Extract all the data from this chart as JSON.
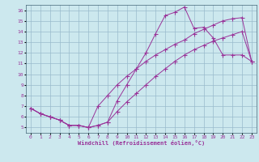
{
  "xlabel": "Windchill (Refroidissement éolien,°C)",
  "bg_color": "#cce8ee",
  "grid_color": "#99bbcc",
  "line_color": "#993399",
  "xlim": [
    -0.5,
    23.5
  ],
  "ylim": [
    4.5,
    16.5
  ],
  "xticks": [
    0,
    1,
    2,
    3,
    4,
    5,
    6,
    7,
    8,
    9,
    10,
    11,
    12,
    13,
    14,
    15,
    16,
    17,
    18,
    19,
    20,
    21,
    22,
    23
  ],
  "yticks": [
    5,
    6,
    7,
    8,
    9,
    10,
    11,
    12,
    13,
    14,
    15,
    16
  ],
  "line1_x": [
    0,
    1,
    2,
    3,
    4,
    5,
    6,
    7,
    8,
    9,
    10,
    11,
    12,
    13,
    14,
    15,
    16,
    17,
    18,
    19,
    20,
    21,
    22,
    23
  ],
  "line1_y": [
    6.8,
    6.3,
    6.0,
    5.7,
    5.2,
    5.2,
    5.0,
    5.2,
    5.5,
    7.5,
    9.0,
    10.5,
    12.0,
    13.8,
    15.5,
    15.8,
    16.3,
    14.3,
    14.4,
    13.4,
    11.8,
    11.8,
    11.8,
    11.2
  ],
  "line2_x": [
    0,
    1,
    2,
    3,
    4,
    5,
    6,
    7,
    8,
    9,
    10,
    11,
    12,
    13,
    14,
    15,
    16,
    17,
    18,
    19,
    20,
    21,
    22,
    23
  ],
  "line2_y": [
    6.8,
    6.3,
    6.0,
    5.7,
    5.2,
    5.2,
    5.0,
    5.2,
    5.5,
    6.5,
    7.4,
    8.2,
    9.0,
    9.8,
    10.5,
    11.2,
    11.8,
    12.3,
    12.7,
    13.1,
    13.4,
    13.7,
    14.0,
    11.2
  ],
  "line3_x": [
    0,
    1,
    2,
    3,
    4,
    5,
    6,
    7,
    8,
    9,
    10,
    11,
    12,
    13,
    14,
    15,
    16,
    17,
    18,
    19,
    20,
    21,
    22,
    23
  ],
  "line3_y": [
    6.8,
    6.3,
    6.0,
    5.7,
    5.2,
    5.2,
    5.0,
    7.0,
    8.0,
    9.0,
    9.8,
    10.5,
    11.2,
    11.8,
    12.3,
    12.8,
    13.2,
    13.8,
    14.2,
    14.6,
    15.0,
    15.2,
    15.3,
    11.2
  ]
}
